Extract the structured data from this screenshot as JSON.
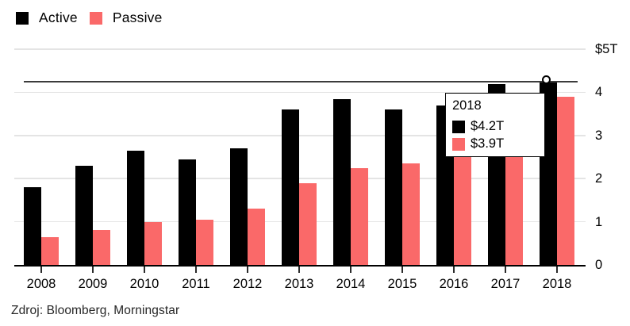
{
  "legend": {
    "items": [
      {
        "label": "Active",
        "color": "#000000"
      },
      {
        "label": "Passive",
        "color": "#FA6969"
      }
    ]
  },
  "chart_data": {
    "type": "bar",
    "categories": [
      "2008",
      "2009",
      "2010",
      "2011",
      "2012",
      "2013",
      "2014",
      "2015",
      "2016",
      "2017",
      "2018"
    ],
    "series": [
      {
        "name": "Active",
        "color": "#000000",
        "values": [
          1.8,
          2.3,
          2.65,
          2.45,
          2.7,
          3.6,
          3.85,
          3.6,
          3.7,
          4.2,
          4.25
        ]
      },
      {
        "name": "Passive",
        "color": "#FA6969",
        "values": [
          0.65,
          0.8,
          1.0,
          1.05,
          1.3,
          1.9,
          2.25,
          2.35,
          3.0,
          3.5,
          3.9
        ]
      }
    ],
    "title": "",
    "xlabel": "",
    "ylabel": "",
    "ylim": [
      0,
      5
    ],
    "y_ticks": [
      {
        "value": 0,
        "label": "0"
      },
      {
        "value": 1,
        "label": "1"
      },
      {
        "value": 2,
        "label": "2"
      },
      {
        "value": 3,
        "label": "3"
      },
      {
        "value": 4,
        "label": "4"
      },
      {
        "value": 5,
        "label": "$5T"
      }
    ],
    "grid": true,
    "legend_position": "top-left",
    "y_axis_side": "right",
    "gridline_color": "#E4E4E4",
    "crosshair_color": "#3C3C3C"
  },
  "hover": {
    "category": "2018",
    "series": "Active"
  },
  "tooltip": {
    "title": "2018",
    "rows": [
      {
        "swatch": "#000000",
        "label": "$4.2T"
      },
      {
        "swatch": "#FA6969",
        "label": "$3.9T"
      }
    ]
  },
  "footer": {
    "source": "Zdroj: Bloomberg, Morningstar"
  }
}
